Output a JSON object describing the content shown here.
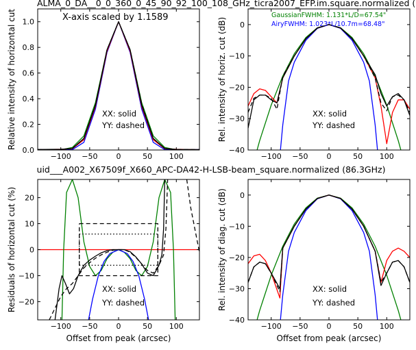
{
  "figure": {
    "top_title": "ALMA_0_DA__0_0_360_0_45_90_92_100_108_GHz_ticra2007_EFP.im.square.normalized (",
    "mid_title": "uid___A002_X67509f_X660_APC-DA42-H-LSB-beam_square.normalized (86.3GHz)",
    "colors": {
      "xx": "#000000",
      "yy": "#000000",
      "gaussian": "#008000",
      "airy": "#0000ff",
      "model": "#ff0000",
      "mid_title": "#ff0000",
      "gauss_text": "#008000",
      "airy_text": "#0000ff"
    }
  },
  "chart_data": [
    {
      "type": "line",
      "panel": "top-left",
      "ylabel": "Relative intensity of horizontal cut",
      "xlabel": "",
      "annotation": "X-axis scaled by 1.1589",
      "xlim": [
        -140,
        140
      ],
      "ylim": [
        0,
        1.1
      ],
      "xticks": [
        -100,
        -50,
        0,
        50,
        100
      ],
      "xtick_labels": [
        "−100",
        "−50",
        "0",
        "50",
        "100"
      ],
      "yticks": [
        0,
        0.2,
        0.4,
        0.6,
        0.8,
        1.0
      ],
      "ytick_labels": [
        "0.0",
        "0.2",
        "0.4",
        "0.6",
        "0.8",
        "1.0"
      ],
      "legend": [
        "XX: solid",
        "YY: dashed"
      ],
      "series": [
        {
          "color": "#008000",
          "style": "solid",
          "x": [
            -140,
            -100,
            -80,
            -60,
            -40,
            -20,
            0,
            20,
            40,
            60,
            80,
            100,
            140
          ],
          "y": [
            0,
            0.001,
            0.02,
            0.11,
            0.37,
            0.78,
            1.0,
            0.78,
            0.37,
            0.11,
            0.02,
            0.001,
            0
          ]
        },
        {
          "color": "#0000ff",
          "style": "solid",
          "x": [
            -140,
            -100,
            -80,
            -60,
            -40,
            -20,
            0,
            20,
            40,
            60,
            80,
            100,
            140
          ],
          "y": [
            0.003,
            0.002,
            0.003,
            0.06,
            0.32,
            0.76,
            1.0,
            0.76,
            0.32,
            0.06,
            0.003,
            0.002,
            0.003
          ]
        },
        {
          "color": "#ff0000",
          "style": "solid",
          "x": [
            -140,
            -100,
            -80,
            -60,
            -40,
            -20,
            0,
            20,
            40,
            60,
            80,
            100,
            140
          ],
          "y": [
            0.002,
            0.006,
            0.01,
            0.08,
            0.34,
            0.77,
            1.0,
            0.77,
            0.34,
            0.08,
            0.01,
            0.006,
            0.002
          ]
        },
        {
          "color": "#000000",
          "style": "solid",
          "x": [
            -140,
            -100,
            -80,
            -60,
            -40,
            -20,
            0,
            20,
            40,
            60,
            80,
            100,
            140
          ],
          "y": [
            0.004,
            0.006,
            0.012,
            0.09,
            0.35,
            0.78,
            1.0,
            0.78,
            0.35,
            0.09,
            0.012,
            0.005,
            0.003
          ]
        },
        {
          "color": "#000000",
          "style": "dashed",
          "x": [
            -140,
            -100,
            -80,
            -60,
            -40,
            -20,
            0,
            20,
            40,
            60,
            80,
            100,
            140
          ],
          "y": [
            0.004,
            0.005,
            0.012,
            0.09,
            0.35,
            0.78,
            1.0,
            0.78,
            0.36,
            0.09,
            0.012,
            0.005,
            0.003
          ]
        }
      ]
    },
    {
      "type": "line",
      "panel": "top-right",
      "ylabel": "Rel. intensity of horiz. cut (dB)",
      "xlabel": "",
      "annotations": [
        "GaussianFWHM: 1.131*L/D=67.54\"",
        "AiryFWHM: 1.023*L/10.7m=68.48\""
      ],
      "xlim": [
        -140,
        140
      ],
      "ylim": [
        -40,
        5
      ],
      "xticks": [
        -100,
        -50,
        0,
        50,
        100
      ],
      "xtick_labels": [
        "−100",
        "−50",
        "0",
        "50",
        "100"
      ],
      "yticks": [
        -40,
        -30,
        -20,
        -10,
        0
      ],
      "ytick_labels": [
        "−40",
        "−30",
        "−20",
        "−10",
        "0"
      ],
      "legend": [
        "XX: solid",
        "YY: dashed"
      ],
      "series": [
        {
          "color": "#008000",
          "style": "solid",
          "x": [
            -140,
            -120,
            -100,
            -80,
            -60,
            -40,
            -20,
            0,
            20,
            40,
            60,
            80,
            100,
            120,
            140
          ],
          "y": [
            -50.4,
            -37,
            -25.7,
            -16.4,
            -9.3,
            -4.1,
            -1.0,
            0,
            -1.0,
            -4.1,
            -9.3,
            -16.4,
            -25.7,
            -37,
            -50.4
          ]
        },
        {
          "color": "#0000ff",
          "style": "solid",
          "x": [
            -84,
            -80,
            -70,
            -60,
            -40,
            -20,
            0,
            20,
            40,
            60,
            70,
            80,
            84
          ],
          "y": [
            -40,
            -32,
            -18,
            -12,
            -5,
            -1.2,
            0,
            -1.2,
            -5,
            -12,
            -18,
            -32,
            -40
          ]
        },
        {
          "color": "#ff0000",
          "style": "solid",
          "x": [
            -140,
            -130,
            -120,
            -110,
            -100,
            -90,
            -80,
            -60,
            -40,
            -20,
            0,
            20,
            40,
            60,
            80,
            90,
            100,
            110,
            120,
            130,
            140
          ],
          "y": [
            -26,
            -22,
            -20.5,
            -21,
            -23,
            -25,
            -17,
            -10,
            -4.5,
            -1.1,
            0,
            -1.1,
            -4.5,
            -10,
            -17,
            -26,
            -38,
            -28,
            -24,
            -24,
            -27
          ]
        },
        {
          "color": "#000000",
          "style": "solid",
          "x": [
            -140,
            -130,
            -120,
            -110,
            -100,
            -90,
            -80,
            -60,
            -40,
            -20,
            0,
            20,
            40,
            60,
            80,
            90,
            100,
            110,
            120,
            130,
            140
          ],
          "y": [
            -33,
            -24,
            -22.5,
            -22.5,
            -24,
            -25,
            -17,
            -10,
            -4.5,
            -1.1,
            0,
            -1.1,
            -4.5,
            -10,
            -16,
            -22,
            -26,
            -23,
            -22,
            -24,
            -29
          ]
        },
        {
          "color": "#000000",
          "style": "dashed",
          "x": [
            -140,
            -130,
            -120,
            -110,
            -100,
            -90,
            -80,
            -60,
            -40,
            -20,
            0,
            20,
            40,
            60,
            80,
            90,
            100,
            110,
            120,
            130,
            140
          ],
          "y": [
            -28,
            -23.5,
            -22.5,
            -22.5,
            -23.5,
            -27,
            -16.5,
            -10,
            -4.5,
            -1.1,
            0,
            -1.1,
            -4.5,
            -10,
            -17,
            -25,
            -27.5,
            -23,
            -22.5,
            -24,
            -28
          ]
        }
      ]
    },
    {
      "type": "line",
      "panel": "bottom-left",
      "ylabel": "Residuals of horizontal cut (%)",
      "xlabel": "Offset from peak (arcsec)",
      "xlim": [
        -140,
        140
      ],
      "ylim": [
        -27,
        27
      ],
      "xticks": [
        -100,
        -50,
        0,
        50,
        100
      ],
      "xtick_labels": [
        "−100",
        "−50",
        "0",
        "50",
        "100"
      ],
      "yticks": [
        -20,
        -10,
        0,
        10,
        20
      ],
      "ytick_labels": [
        "−20",
        "−10",
        "0",
        "10",
        "20"
      ],
      "legend": [
        "XX: solid",
        "YY: dashed"
      ],
      "series": [
        {
          "color": "#ff0000",
          "style": "solid",
          "x": [
            -140,
            140
          ],
          "y": [
            0,
            0
          ]
        },
        {
          "color": "#008000",
          "style": "solid",
          "x": [
            -98,
            -95,
            -90,
            -80,
            -70,
            -60,
            -50,
            -40,
            -30,
            -20,
            -10,
            0,
            10,
            20,
            30,
            40,
            50,
            60,
            70,
            80,
            90,
            95,
            98
          ],
          "y": [
            -27,
            0,
            22,
            27,
            20,
            3,
            -6.5,
            -10,
            -8,
            -3.5,
            -1,
            0,
            -1,
            -3.5,
            -8,
            -10,
            -6.5,
            3,
            20,
            27,
            22,
            0,
            -27
          ]
        },
        {
          "color": "#0000ff",
          "style": "solid",
          "x": [
            -52,
            -45,
            -35,
            -25,
            -15,
            0,
            15,
            25,
            35,
            45,
            52
          ],
          "y": [
            -27,
            -19,
            -10,
            -4.5,
            -1.5,
            0,
            -1.5,
            -4.5,
            -10,
            -19,
            -27
          ]
        },
        {
          "color": "#000000",
          "style": "solid",
          "x": [
            -110,
            -103,
            -98,
            -92,
            -85,
            -78,
            -70,
            -60,
            -50,
            -40,
            -30,
            -20,
            -10,
            0,
            10,
            20,
            30,
            40,
            50,
            60,
            70,
            75,
            78,
            80
          ],
          "y": [
            -27,
            -15,
            -10,
            -13,
            -17,
            -15,
            -10,
            -6,
            -4,
            -2.5,
            -1.2,
            -0.4,
            0,
            0,
            0,
            -0.8,
            -2.8,
            -5.5,
            -9,
            -10,
            -6,
            -2,
            8,
            27
          ]
        },
        {
          "color": "#000000",
          "style": "dashed",
          "x": [
            -120,
            -100,
            -90,
            -80,
            -70,
            -60,
            -50,
            -40,
            -30,
            -20,
            -10,
            0,
            10,
            20,
            30,
            40,
            50,
            60,
            70,
            78,
            82,
            85
          ],
          "y": [
            -27,
            -18,
            -15,
            -13,
            -10,
            -7,
            -5,
            -3.3,
            -2,
            -1,
            -0.2,
            0,
            0,
            -1,
            -3,
            -5.5,
            -8,
            -9,
            -6,
            -2,
            8,
            27
          ]
        },
        {
          "color": "#000000",
          "style": "dashed",
          "x": [
            118,
            125,
            132,
            140
          ],
          "y": [
            27,
            16,
            8,
            -1
          ]
        },
        {
          "color": "#000000",
          "style": "dashed",
          "x": [
            -68,
            68,
            68,
            -68,
            -68
          ],
          "y": [
            10,
            10,
            -10,
            -10,
            10
          ]
        },
        {
          "color": "#000000",
          "style": "dotted",
          "x": [
            -68,
            68
          ],
          "y": [
            6,
            6
          ]
        },
        {
          "color": "#000000",
          "style": "dotted",
          "x": [
            -68,
            68
          ],
          "y": [
            -6,
            -6
          ]
        },
        {
          "color": "#000000",
          "style": "dotted",
          "x": [
            68,
            68
          ],
          "y": [
            -6,
            6
          ]
        },
        {
          "color": "#000000",
          "style": "dotted",
          "x": [
            -68,
            -68
          ],
          "y": [
            -6,
            6
          ]
        }
      ]
    },
    {
      "type": "line",
      "panel": "bottom-right",
      "ylabel": "Rel. intensity of diag. cut (dB)",
      "xlabel": "Offset from peak (arcsec)",
      "xlim": [
        -140,
        140
      ],
      "ylim": [
        -40,
        5
      ],
      "xticks": [
        -100,
        -50,
        0,
        50,
        100
      ],
      "xtick_labels": [
        "−100",
        "−50",
        "0",
        "50",
        "100"
      ],
      "yticks": [
        -40,
        -30,
        -20,
        -10,
        0
      ],
      "ytick_labels": [
        "−40",
        "−30",
        "−20",
        "−10",
        "0"
      ],
      "legend": [
        "XX: solid",
        "YY: dashed"
      ],
      "series": [
        {
          "color": "#008000",
          "style": "solid",
          "x": [
            -140,
            -120,
            -100,
            -80,
            -60,
            -40,
            -20,
            0,
            20,
            40,
            60,
            80,
            100,
            120,
            140
          ],
          "y": [
            -50.4,
            -37,
            -25.7,
            -16.4,
            -9.3,
            -4.1,
            -1.0,
            0,
            -1.0,
            -4.1,
            -9.3,
            -16.4,
            -25.7,
            -37,
            -50.4
          ]
        },
        {
          "color": "#0000ff",
          "style": "solid",
          "x": [
            -84,
            -80,
            -70,
            -60,
            -40,
            -20,
            0,
            20,
            40,
            60,
            70,
            80,
            84
          ],
          "y": [
            -40,
            -32,
            -18,
            -12,
            -5,
            -1.2,
            0,
            -1.2,
            -5,
            -12,
            -18,
            -32,
            -40
          ]
        },
        {
          "color": "#ff0000",
          "style": "solid",
          "x": [
            -140,
            -130,
            -120,
            -110,
            -100,
            -85,
            -80,
            -60,
            -40,
            -20,
            0,
            20,
            40,
            60,
            80,
            90,
            100,
            110,
            120,
            130,
            140
          ],
          "y": [
            -22,
            -19.5,
            -19,
            -21,
            -25,
            -33,
            -17,
            -10,
            -4.5,
            -1.1,
            0,
            -1.1,
            -4.5,
            -10,
            -18,
            -28,
            -21,
            -18,
            -17,
            -18,
            -20
          ]
        },
        {
          "color": "#000000",
          "style": "solid",
          "x": [
            -140,
            -130,
            -120,
            -110,
            -100,
            -85,
            -80,
            -60,
            -40,
            -20,
            0,
            20,
            40,
            60,
            80,
            90,
            100,
            110,
            120,
            130,
            140
          ],
          "y": [
            -28,
            -23,
            -21.5,
            -22,
            -25,
            -30,
            -17,
            -10,
            -4.5,
            -1.1,
            0,
            -1.1,
            -4.5,
            -10,
            -18,
            -29,
            -25,
            -21.5,
            -21,
            -23,
            -28
          ]
        },
        {
          "color": "#000000",
          "style": "dashed",
          "x": [
            -140,
            -130,
            -120,
            -110,
            -100,
            -85,
            -80,
            -60,
            -40,
            -20,
            0,
            20,
            40,
            60,
            80,
            90,
            100,
            110,
            120,
            130,
            140
          ],
          "y": [
            -28,
            -23,
            -21.5,
            -22,
            -25,
            -31,
            -17,
            -10,
            -4.5,
            -1.1,
            0,
            -1.1,
            -4.5,
            -10,
            -18,
            -28,
            -25,
            -21.5,
            -21,
            -23,
            -28
          ]
        }
      ]
    }
  ]
}
